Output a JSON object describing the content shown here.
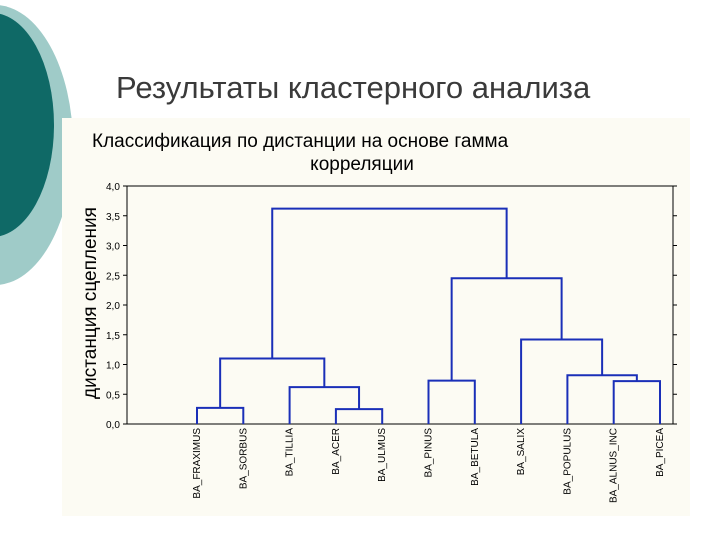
{
  "slide": {
    "title": "Результаты кластерного анализа"
  },
  "colors": {
    "deco_dark": "#0f6966",
    "deco_light": "#9fcbc8",
    "panel": "#fcfbf3",
    "dendrogram": "#1a2fb8"
  },
  "chart_data": {
    "type": "dendrogram",
    "title_lines": [
      "Классификация по дистанции на основе гамма",
      "корреляции"
    ],
    "ylabel": "дистанция сцепления",
    "ylim": [
      0,
      4
    ],
    "yticks": [
      "4,0",
      "3,5",
      "3,0",
      "2,5",
      "2,0",
      "1,5",
      "1,0",
      "0,5",
      "0,0"
    ],
    "leaves": [
      "BA_FRAXIMUS",
      "BA_SORBUS",
      "BA_TILLIA",
      "BA_ACER",
      "BA_ULMUS",
      "BA_PINUS",
      "BA_BETULA",
      "BA_SALIX",
      "BA_POPULUS",
      "BA_ALNUS_INC",
      "BA_PICEA"
    ],
    "merges": [
      {
        "a": "L0",
        "b": "L1",
        "height": 0.27
      },
      {
        "a": "L3",
        "b": "L4",
        "height": 0.25
      },
      {
        "a": "L2",
        "b": "M1",
        "height": 0.62
      },
      {
        "a": "M0",
        "b": "M2",
        "height": 1.1
      },
      {
        "a": "L9",
        "b": "L10",
        "height": 0.72
      },
      {
        "a": "L8",
        "b": "M4",
        "height": 0.82
      },
      {
        "a": "L7",
        "b": "M5",
        "height": 1.42
      },
      {
        "a": "L5",
        "b": "L6",
        "height": 0.73
      },
      {
        "a": "M7",
        "b": "M6",
        "height": 2.45
      },
      {
        "a": "M3",
        "b": "M8",
        "height": 3.62
      }
    ]
  }
}
